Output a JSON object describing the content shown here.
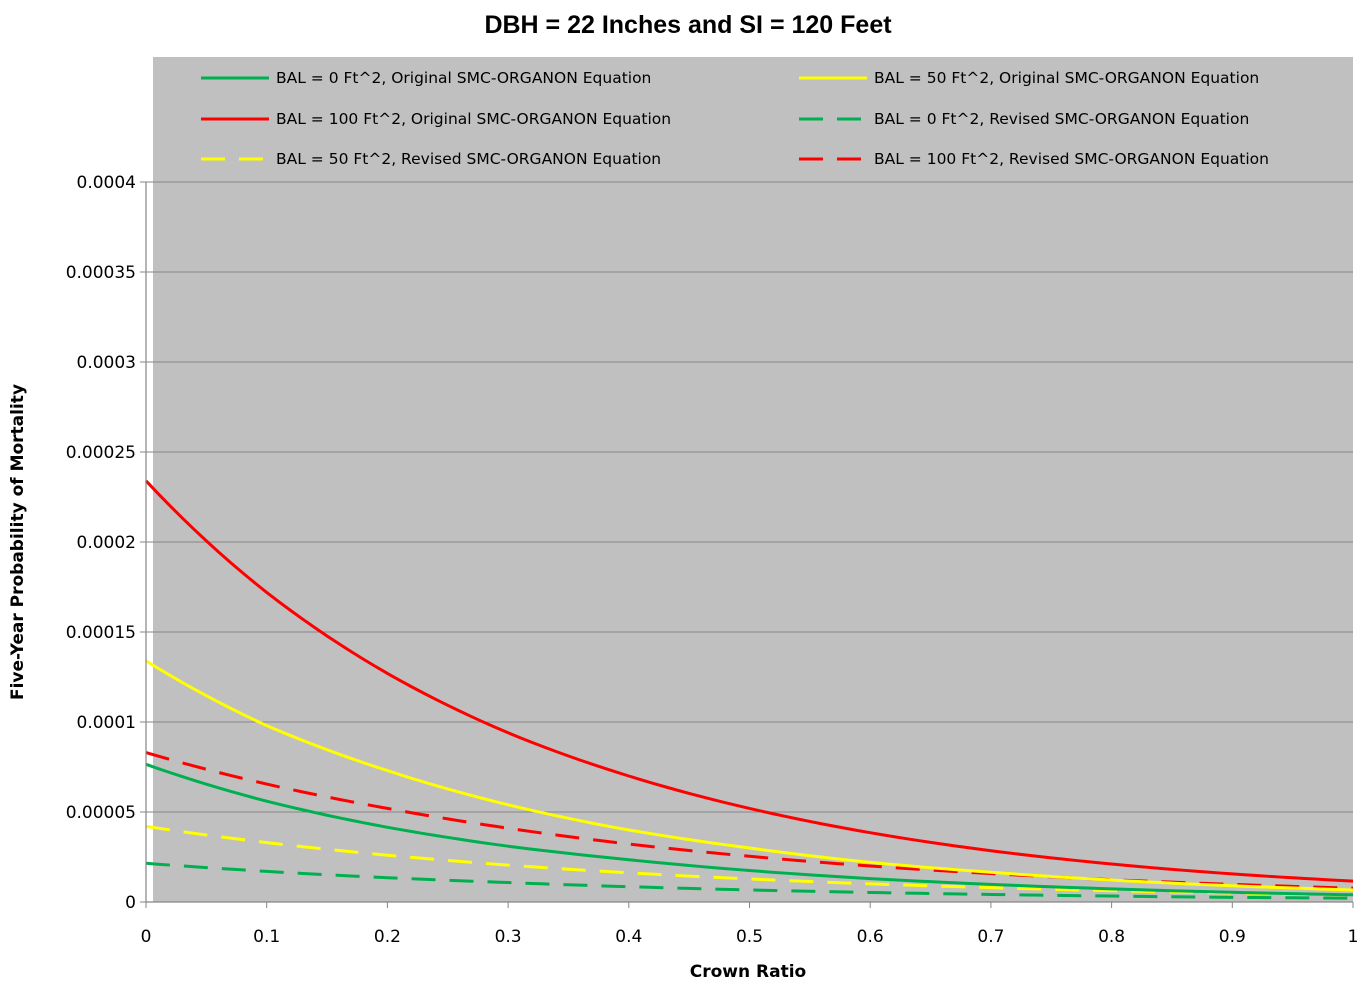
{
  "chart_data": {
    "type": "line",
    "title": "DBH = 22 Inches and SI = 120 Feet",
    "xlabel": "Crown Ratio",
    "ylabel": "Five-Year Probability of Mortality",
    "xlim": [
      0,
      1
    ],
    "ylim": [
      0,
      0.0004
    ],
    "x_ticks": [
      "0",
      "0.1",
      "0.2",
      "0.3",
      "0.4",
      "0.5",
      "0.6",
      "0.7",
      "0.8",
      "0.9",
      "1"
    ],
    "y_ticks": [
      "0",
      "0.00005",
      "0.0001",
      "0.00015",
      "0.0002",
      "0.00025",
      "0.0003",
      "0.00035",
      "0.0004"
    ],
    "grid": "horizontal",
    "plot_background": "#c0c0c0",
    "legend_position": "top",
    "x": [
      0,
      0.1,
      0.2,
      0.3,
      0.4,
      0.5,
      0.6,
      0.7,
      0.8,
      0.9,
      1.0
    ],
    "series": [
      {
        "name": "BAL = 0 Ft^2, Original SMC-ORGANON Equation",
        "color": "#00b050",
        "dash": "solid",
        "values": [
          7.65e-05,
          5.6e-05,
          4.15e-05,
          3.1e-05,
          2.35e-05,
          1.75e-05,
          1.3e-05,
          9.8e-06,
          7.3e-06,
          5.4e-06,
          4e-06
        ]
      },
      {
        "name": "BAL = 50 Ft^2, Original SMC-ORGANON Equation",
        "color": "#ffff00",
        "dash": "solid",
        "values": [
          0.000134,
          9.8e-05,
          7.3e-05,
          5.4e-05,
          4e-05,
          3e-05,
          2.2e-05,
          1.65e-05,
          1.22e-05,
          9e-06,
          6.7e-06
        ]
      },
      {
        "name": "BAL = 100 Ft^2, Original SMC-ORGANON Equation",
        "color": "#ff0000",
        "dash": "solid",
        "values": [
          0.000234,
          0.000172,
          0.000127,
          9.4e-05,
          7e-05,
          5.2e-05,
          3.85e-05,
          2.85e-05,
          2.11e-05,
          1.56e-05,
          1.16e-05
        ]
      },
      {
        "name": "BAL = 0 Ft^2, Revised SMC-ORGANON Equation",
        "color": "#00b050",
        "dash": "dashed",
        "values": [
          2.15e-05,
          1.7e-05,
          1.35e-05,
          1.08e-05,
          8.5e-06,
          6.7e-06,
          5.3e-06,
          4.2e-06,
          3.3e-06,
          2.6e-06,
          2.1e-06
        ]
      },
      {
        "name": "BAL = 50 Ft^2, Revised SMC-ORGANON Equation",
        "color": "#ffff00",
        "dash": "dashed",
        "values": [
          4.2e-05,
          3.3e-05,
          2.6e-05,
          2.05e-05,
          1.62e-05,
          1.28e-05,
          1.01e-05,
          8e-06,
          6.3e-06,
          5e-06,
          3.9e-06
        ]
      },
      {
        "name": "BAL = 100 Ft^2, Revised SMC-ORGANON Equation",
        "color": "#ff0000",
        "dash": "dashed",
        "values": [
          8.3e-05,
          6.55e-05,
          5.2e-05,
          4.1e-05,
          3.22e-05,
          2.54e-05,
          2e-05,
          1.58e-05,
          1.24e-05,
          9.8e-06,
          7.7e-06
        ]
      }
    ]
  }
}
